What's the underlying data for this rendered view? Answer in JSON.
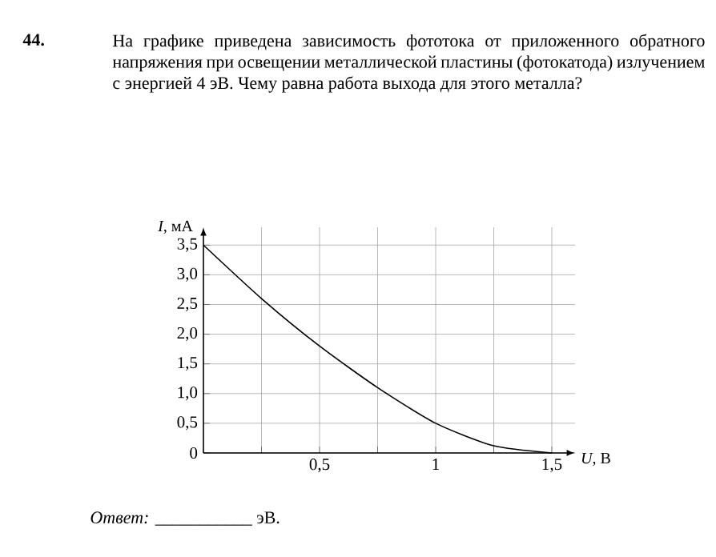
{
  "chart_data": {
    "type": "line",
    "title": "На графике приведена зависимость фототока от приложенного обратного напряжения при освещении металлической пластины (фотокатода) излучением с энергией 4 эВ. Чему равна работа выхода для этого металла?",
    "annotations": [
      "44.",
      "*Ответ:* ___________ эВ."
    ],
    "xlabel": "*U*, В",
    "ylabel": "*I*, мА",
    "x": [
      0,
      0.25,
      0.5,
      0.75,
      1,
      1.25,
      1.5
    ],
    "series": [
      {
        "color": "#000000",
        "values": [
          3.5,
          2.6,
          1.8,
          1.1,
          0.5,
          0.12,
          0
        ]
      }
    ],
    "xlim": [
      0,
      1.6
    ],
    "ylim": [
      0,
      3.8
    ],
    "xticks": [
      {
        "value": 0.25,
        "label": null
      },
      {
        "value": 0.5,
        "label": "0,5"
      },
      {
        "value": 0.75,
        "label": null
      },
      1,
      {
        "value": 1.25,
        "label": null
      },
      {
        "value": 1.5,
        "label": "1,5"
      }
    ],
    "yticks": [
      0,
      {
        "value": 0.5,
        "label": "0,5"
      },
      {
        "value": 1,
        "label": "1,0"
      },
      {
        "value": 1.5,
        "label": "1,5"
      },
      {
        "value": 2,
        "label": "2,0"
      },
      {
        "value": 2.5,
        "label": "2,5"
      },
      {
        "value": 3,
        "label": "3,0"
      },
      {
        "value": 3.5,
        "label": "3,5"
      }
    ],
    "grid": true,
    "marker": "none",
    "line_style": "solid"
  }
}
